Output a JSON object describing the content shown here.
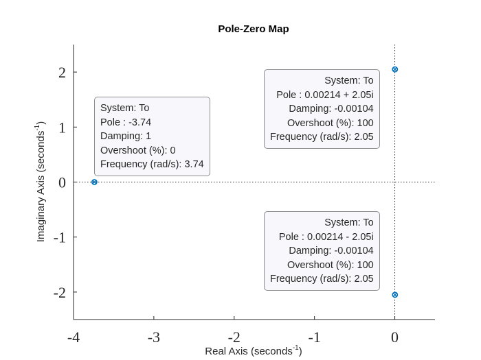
{
  "chart_data": {
    "type": "scatter",
    "title": "Pole-Zero Map",
    "xlabel": "Real Axis (seconds",
    "xlabel_exp": "-1",
    "ylabel": "Imaginary Axis (seconds",
    "ylabel_exp": "-1",
    "xlim": [
      -4,
      0.5
    ],
    "ylim": [
      -2.5,
      2.5
    ],
    "xticks": [
      -4,
      -3,
      -2,
      -1,
      0
    ],
    "yticks": [
      -2,
      -1,
      0,
      1,
      2
    ],
    "x_tick_labels": [
      "-4",
      "-3",
      "-2",
      "-1",
      "0"
    ],
    "y_tick_labels": [
      "-2",
      "-1",
      "0",
      "1",
      "2"
    ],
    "grid": false,
    "marker_color": "#0072bd",
    "poles": [
      {
        "re": -3.74,
        "im": 0
      },
      {
        "re": 0.00214,
        "im": 2.05
      },
      {
        "re": 0.00214,
        "im": -2.05
      }
    ],
    "datatips": [
      {
        "system": "System: To",
        "pole": "Pole : -3.74",
        "damping": "Damping: 1",
        "overshoot": "Overshoot (%): 0",
        "frequency": "Frequency (rad/s): 3.74"
      },
      {
        "system": "System: To",
        "pole": "Pole : 0.00214 + 2.05i",
        "damping": "Damping: -0.00104",
        "overshoot": "Overshoot (%): 100",
        "frequency": "Frequency (rad/s): 2.05"
      },
      {
        "system": "System: To",
        "pole": "Pole : 0.00214 - 2.05i",
        "damping": "Damping: -0.00104",
        "overshoot": "Overshoot (%): 100",
        "frequency": "Frequency (rad/s): 2.05"
      }
    ]
  }
}
